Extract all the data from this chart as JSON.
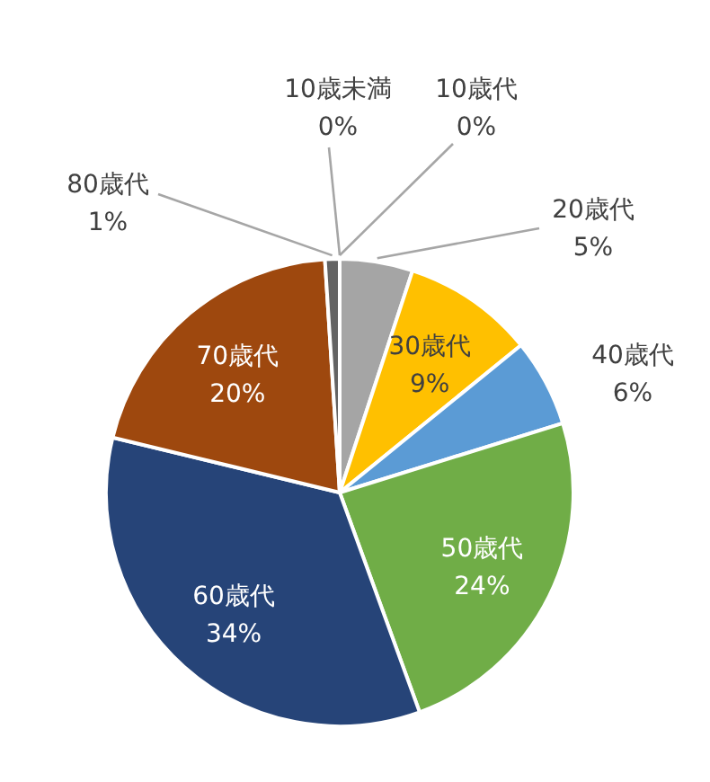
{
  "chart_data": {
    "type": "pie",
    "categories": [
      "10歳未満",
      "10歳代",
      "20歳代",
      "30歳代",
      "40歳代",
      "50歳代",
      "60歳代",
      "70歳代",
      "80歳代"
    ],
    "values": [
      0,
      0,
      5,
      9,
      6,
      24,
      34,
      20,
      1
    ],
    "colors": [
      "#4472c4",
      "#ed7d31",
      "#a5a5a5",
      "#ffc000",
      "#5b9bd5",
      "#70ad47",
      "#264478",
      "#9e480e",
      "#636363"
    ],
    "value_labels": [
      "0%",
      "0%",
      "5%",
      "9%",
      "6%",
      "24%",
      "34%",
      "20%",
      "1%"
    ]
  }
}
